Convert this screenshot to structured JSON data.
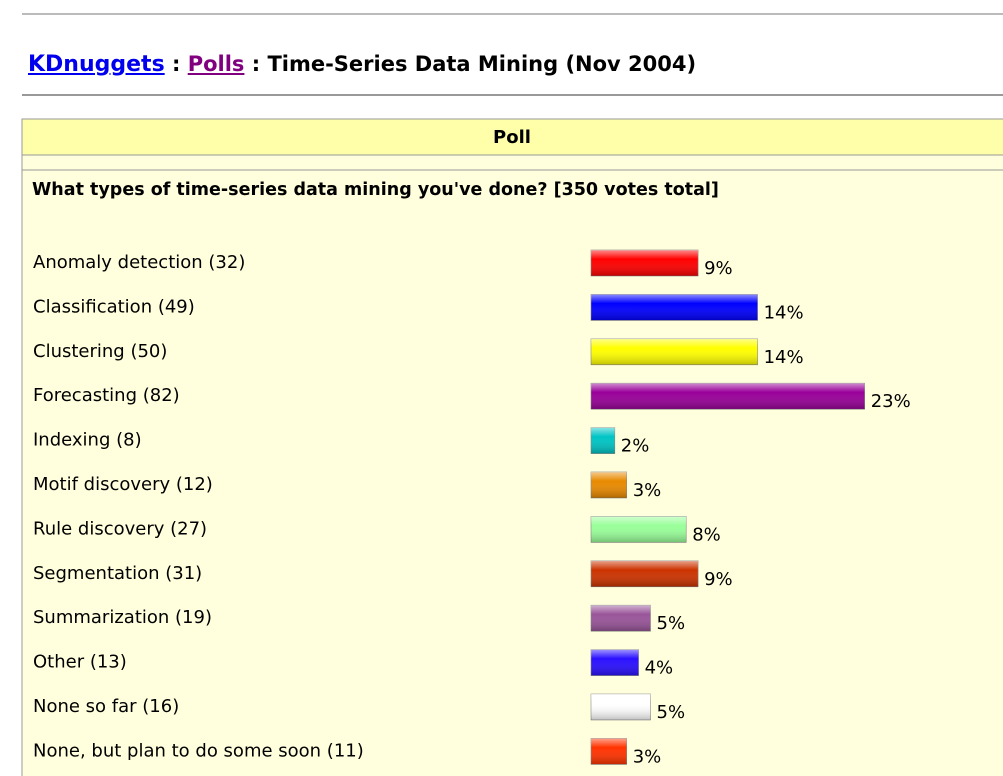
{
  "header": {
    "site": "KDnuggets",
    "sep1": ":",
    "section": "Polls",
    "page_title": ": Time-Series Data Mining (Nov 2004)"
  },
  "chart_data": {
    "type": "bar",
    "orientation": "horizontal",
    "title": "Poll",
    "subtitle": "What types of time-series data mining you've done? [350 votes total]",
    "categories": [
      "Anomaly detection (32)",
      "Classification (49)",
      "Clustering (50)",
      "Forecasting (82)",
      "Indexing (8)",
      "Motif discovery (12)",
      "Rule discovery (27)",
      "Segmentation (31)",
      "Summarization (19)",
      "Other (13)",
      "None so far (16)",
      "None, but plan to do some soon (11)"
    ],
    "values": [
      9,
      14,
      14,
      23,
      2,
      3,
      8,
      9,
      5,
      4,
      5,
      3
    ],
    "value_labels": [
      "9%",
      "14%",
      "14%",
      "23%",
      "2%",
      "3%",
      "8%",
      "9%",
      "5%",
      "4%",
      "5%",
      "3%"
    ],
    "colors": [
      "#ff0000",
      "#0000ff",
      "#ffff00",
      "#990099",
      "#00c4c4",
      "#e88a00",
      "#99ff99",
      "#cc3300",
      "#995599",
      "#2a10ff",
      "#ffffff",
      "#ff3300"
    ]
  }
}
